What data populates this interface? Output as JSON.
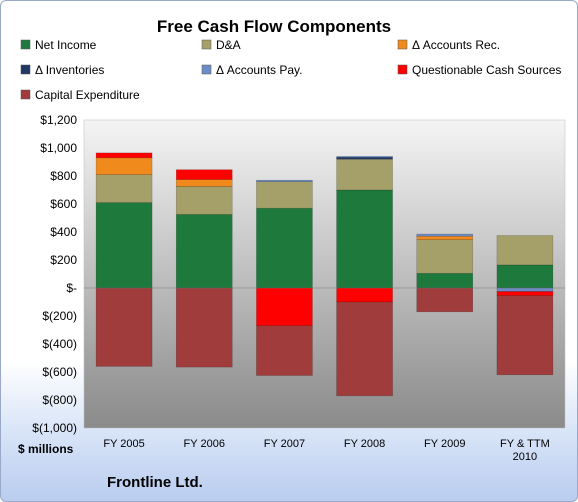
{
  "chart_data": {
    "type": "bar",
    "stacked": true,
    "title": "Free Cash Flow Components",
    "ylabel": "$ millions",
    "categories": [
      "FY 2005",
      "FY 2006",
      "FY 2007",
      "FY 2008",
      "FY 2009",
      "FY & TTM 2010"
    ],
    "ylim": [
      -1000,
      1200
    ],
    "yticks": [
      {
        "value": 1200,
        "label": "$1,200"
      },
      {
        "value": 1000,
        "label": "$1,000"
      },
      {
        "value": 800,
        "label": "$800"
      },
      {
        "value": 600,
        "label": "$600"
      },
      {
        "value": 400,
        "label": "$400"
      },
      {
        "value": 200,
        "label": "$200"
      },
      {
        "value": 0,
        "label": "$-"
      },
      {
        "value": -200,
        "label": "$(200)"
      },
      {
        "value": -400,
        "label": "$(400)"
      },
      {
        "value": -600,
        "label": "$(600)"
      },
      {
        "value": -800,
        "label": "$(800)"
      },
      {
        "value": -1000,
        "label": "$(1,000)"
      }
    ],
    "series": [
      {
        "name": "Net Income",
        "color": "#1e7a3c",
        "values": [
          610,
          525,
          570,
          700,
          105,
          165
        ]
      },
      {
        "name": "D&A",
        "color": "#a5a06a",
        "values": [
          200,
          200,
          190,
          220,
          240,
          210
        ]
      },
      {
        "name": "Δ Accounts Rec.",
        "color": "#f08a1c",
        "values": [
          120,
          50,
          0,
          0,
          25,
          0
        ]
      },
      {
        "name": "Δ Inventories",
        "color": "#1f3864",
        "values": [
          0,
          0,
          0,
          15,
          0,
          0
        ]
      },
      {
        "name": "Δ Accounts Pay.",
        "color": "#6b8cc7",
        "values": [
          0,
          0,
          10,
          5,
          15,
          -25
        ]
      },
      {
        "name": "Questionable Cash Sources",
        "color": "#ff0000",
        "values": [
          35,
          70,
          -270,
          -100,
          0,
          -30
        ]
      },
      {
        "name": "Capital Expenditure",
        "color": "#a03c3c",
        "values": [
          -560,
          -565,
          -355,
          -670,
          -170,
          -565
        ]
      }
    ],
    "colors": {
      "plot_background_top": "#f2f2f2",
      "plot_background_bottom": "#8c8c8c"
    },
    "grid": false,
    "legend_position": "top"
  },
  "company": "Frontline Ltd."
}
